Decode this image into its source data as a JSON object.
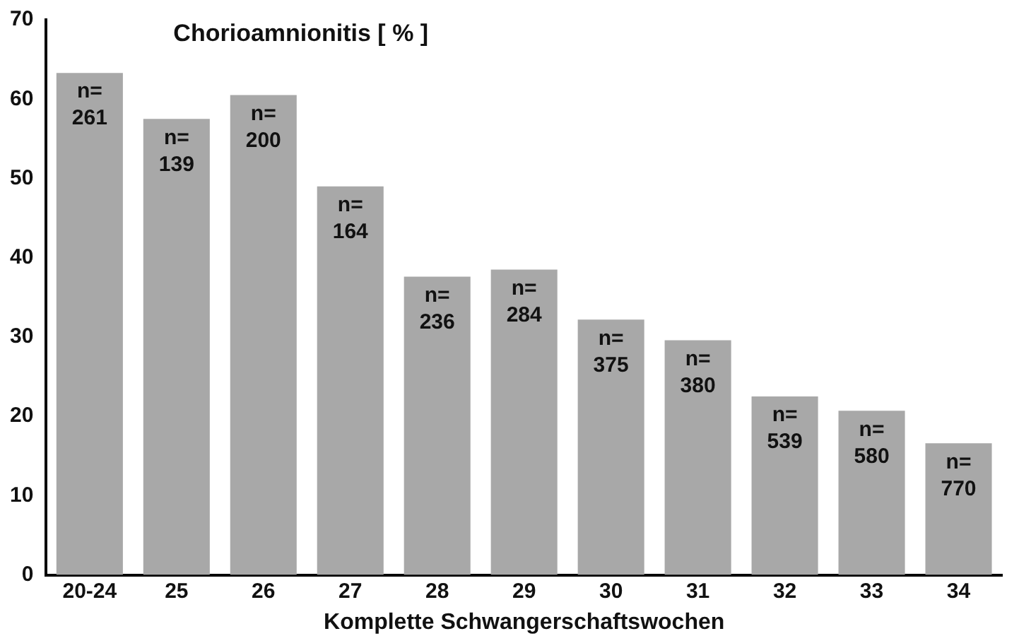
{
  "chart_data": {
    "type": "bar",
    "title": "Chorioamnionitis [ % ]",
    "xlabel": "Komplette Schwangerschaftswochen",
    "categories": [
      "20-24",
      "25",
      "26",
      "27",
      "28",
      "29",
      "30",
      "31",
      "32",
      "33",
      "34"
    ],
    "values": [
      63.3,
      57.5,
      60.5,
      49,
      37.6,
      38.5,
      32.2,
      29.6,
      22.5,
      20.7,
      16.6
    ],
    "annotations": [
      {
        "text": "n=\n261",
        "x": "20-24",
        "y": 63.3
      },
      {
        "text": "n=\n139",
        "x": "25",
        "y": 57.5
      },
      {
        "text": "n=\n200",
        "x": "26",
        "y": 60.5
      },
      {
        "text": "n=\n164",
        "x": "27",
        "y": 49
      },
      {
        "text": "n=\n236",
        "x": "28",
        "y": 37.6
      },
      {
        "text": "n=\n284",
        "x": "29",
        "y": 38.5
      },
      {
        "text": "n=\n375",
        "x": "30",
        "y": 32.2
      },
      {
        "text": "n=\n380",
        "x": "31",
        "y": 29.6
      },
      {
        "text": "n=\n539",
        "x": "32",
        "y": 22.5
      },
      {
        "text": "n=\n580",
        "x": "33",
        "y": 20.7
      },
      {
        "text": "n=\n770",
        "x": "34",
        "y": 16.6
      }
    ],
    "color": "#a8a8a8",
    "ylim": [
      0,
      70
    ],
    "yticks": [
      0,
      10,
      20,
      30,
      40,
      50,
      60,
      70
    ],
    "grid": false,
    "legend": false
  }
}
